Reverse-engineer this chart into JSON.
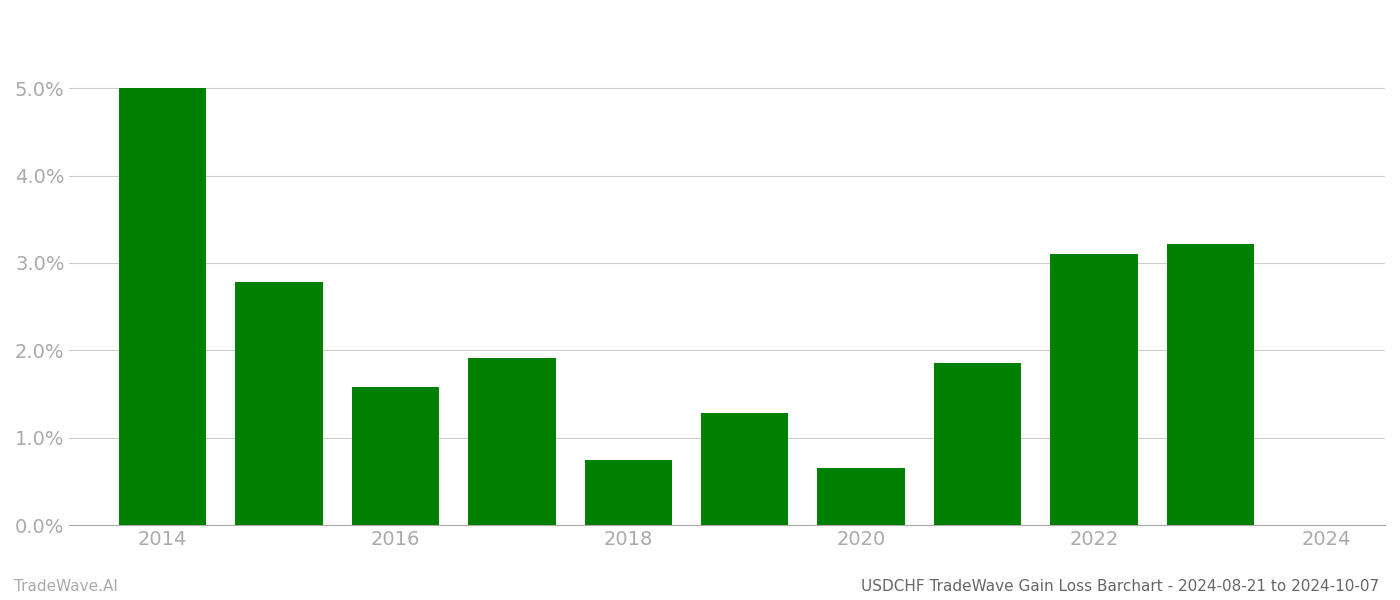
{
  "years": [
    2014,
    2015,
    2016,
    2017,
    2018,
    2019,
    2020,
    2021,
    2022,
    2023
  ],
  "values": [
    0.05,
    0.0278,
    0.0158,
    0.0191,
    0.0075,
    0.0128,
    0.0065,
    0.0185,
    0.031,
    0.0322
  ],
  "bar_color": "#008000",
  "background_color": "#ffffff",
  "title": "USDCHF TradeWave Gain Loss Barchart - 2024-08-21 to 2024-10-07",
  "watermark_left": "TradeWave.AI",
  "ylim": [
    0,
    0.057
  ],
  "ytick_vals": [
    0.0,
    0.01,
    0.02,
    0.03,
    0.04,
    0.05
  ],
  "xtick_positions": [
    2014,
    2016,
    2018,
    2020,
    2022,
    2024
  ],
  "xtick_labels": [
    "2014",
    "2016",
    "2018",
    "2020",
    "2022",
    "2024"
  ],
  "grid_color": "#cccccc",
  "axis_color": "#aaaaaa",
  "label_color": "#aaaaaa",
  "title_color": "#666666",
  "watermark_color": "#aaaaaa",
  "bar_width": 0.75,
  "xlim": [
    2013.2,
    2024.5
  ]
}
